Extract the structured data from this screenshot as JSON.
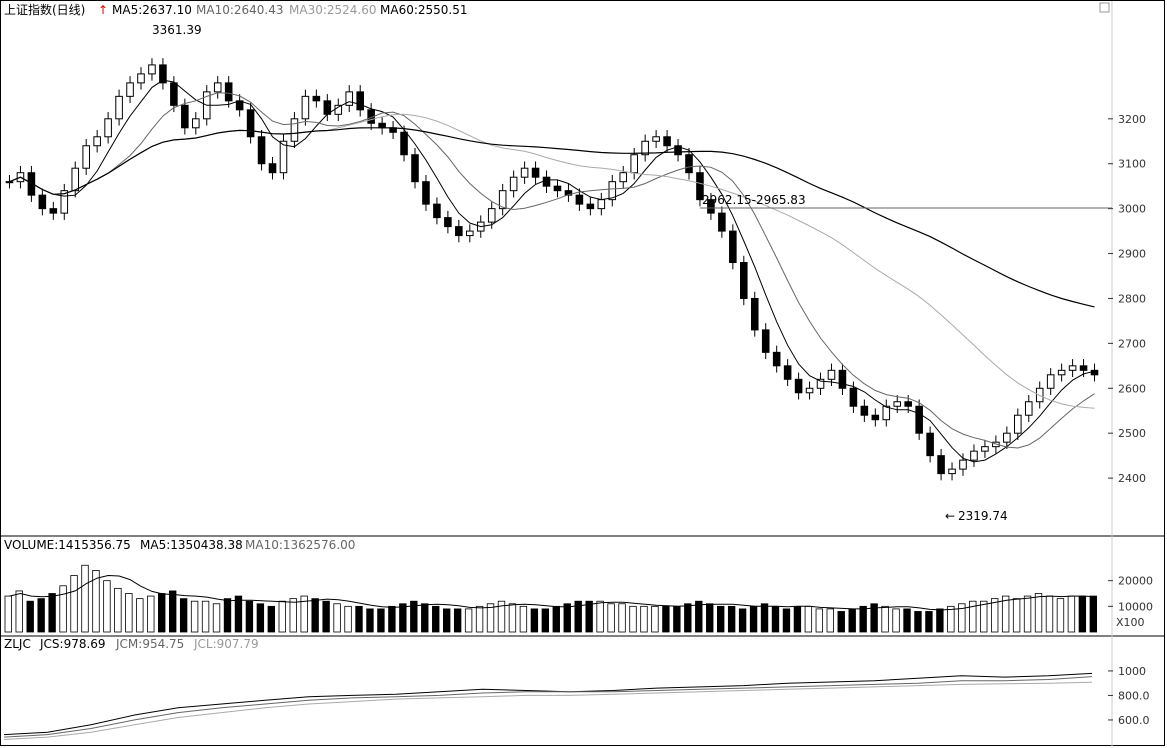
{
  "header": {
    "index_name": "上证指数(日线)",
    "ma5": "MA5:2637.10",
    "ma10": "MA10:2640.43",
    "ma30": "MA30:2524.60",
    "ma60": "MA60:2550.51"
  },
  "annotations": {
    "high_label": "3361.39",
    "low_label": "2319.74",
    "gap_label": "2962.15-2965.83"
  },
  "volume_header": {
    "volume": "VOLUME:1415356.75",
    "ma5": "MA5:1350438.38",
    "ma10": "MA10:1362576.00"
  },
  "zljc_header": {
    "name": "ZLJC",
    "jcs": "JCS:978.69",
    "jcm": "JCM:954.75",
    "jcl": "JCL:907.79"
  },
  "volume_unit": "X100",
  "colors": {
    "background": "#ffffff",
    "candle": "#000000",
    "up_arrow": "#e00000",
    "down_arrow": "#22bb22",
    "ma_light": "#aaaaaa"
  },
  "chart_data": [
    {
      "type": "line",
      "name": "price",
      "ylim": [
        2280,
        3420
      ],
      "yticks": [
        2400,
        2500,
        2600,
        2700,
        2800,
        2900,
        3000,
        3100,
        3200
      ],
      "ytick_labels": [
        "2400",
        "2500",
        "2600",
        "2700",
        "2800",
        "2900",
        "3000",
        "3100",
        "3200"
      ],
      "close": [
        3060,
        3080,
        3030,
        3000,
        2990,
        3040,
        3090,
        3140,
        3160,
        3200,
        3250,
        3280,
        3300,
        3320,
        3280,
        3230,
        3180,
        3200,
        3260,
        3280,
        3240,
        3220,
        3160,
        3100,
        3080,
        3150,
        3200,
        3250,
        3240,
        3210,
        3230,
        3260,
        3220,
        3190,
        3180,
        3170,
        3120,
        3060,
        3010,
        2980,
        2960,
        2940,
        2950,
        2970,
        3000,
        3040,
        3070,
        3090,
        3070,
        3050,
        3040,
        3030,
        3010,
        3000,
        3020,
        3060,
        3080,
        3120,
        3150,
        3160,
        3140,
        3120,
        3080,
        3020,
        2990,
        2950,
        2880,
        2800,
        2730,
        2680,
        2650,
        2620,
        2590,
        2600,
        2620,
        2640,
        2600,
        2560,
        2540,
        2530,
        2560,
        2570,
        2560,
        2500,
        2450,
        2410,
        2420,
        2440,
        2460,
        2470,
        2480,
        2500,
        2540,
        2570,
        2600,
        2630,
        2640,
        2650,
        2640,
        2630
      ]
    },
    {
      "type": "bar",
      "name": "volume",
      "ylim": [
        0,
        30000
      ],
      "yticks": [
        10000,
        20000
      ],
      "ytick_labels": [
        "10000",
        "20000"
      ],
      "values": [
        14000,
        16000,
        12000,
        13000,
        15000,
        18000,
        22000,
        26000,
        24000,
        20000,
        17000,
        15000,
        13000,
        14000,
        15000,
        16000,
        13000,
        12000,
        12000,
        11000,
        13000,
        14000,
        12000,
        11000,
        10000,
        12000,
        13000,
        14000,
        13000,
        12000,
        11000,
        10000,
        10000,
        9000,
        9000,
        10000,
        11000,
        12000,
        11000,
        10000,
        9000,
        9000,
        9000,
        10000,
        11000,
        12000,
        11000,
        10000,
        9000,
        9000,
        10000,
        11000,
        12000,
        12000,
        12000,
        11000,
        11000,
        10000,
        10000,
        10000,
        10000,
        10000,
        11000,
        12000,
        11000,
        10000,
        10000,
        9000,
        10000,
        11000,
        10000,
        9000,
        10000,
        10000,
        9000,
        9000,
        8000,
        9000,
        10000,
        11000,
        10000,
        9000,
        9000,
        8000,
        8000,
        9000,
        10000,
        11000,
        12000,
        12000,
        13000,
        14000,
        13000,
        14000,
        15000,
        14000,
        13000,
        14000,
        14000,
        14000
      ]
    },
    {
      "type": "line",
      "name": "ZLJC",
      "ylim": [
        420,
        1130
      ],
      "yticks": [
        600,
        800,
        1000
      ],
      "ytick_labels": [
        "600.0",
        "800.0",
        "1000"
      ],
      "series": [
        {
          "name": "JCS",
          "values": [
            480,
            500,
            560,
            640,
            700,
            730,
            760,
            790,
            800,
            810,
            830,
            850,
            840,
            830,
            840,
            860,
            870,
            880,
            900,
            910,
            920,
            940,
            960,
            950,
            960,
            980
          ]
        },
        {
          "name": "JCM",
          "values": [
            460,
            480,
            530,
            600,
            660,
            700,
            730,
            760,
            780,
            790,
            800,
            820,
            830,
            830,
            830,
            840,
            850,
            860,
            870,
            880,
            890,
            900,
            920,
            920,
            930,
            954
          ]
        },
        {
          "name": "JCL",
          "values": [
            440,
            460,
            500,
            560,
            620,
            660,
            700,
            730,
            750,
            770,
            780,
            790,
            800,
            800,
            810,
            820,
            830,
            840,
            850,
            860,
            870,
            880,
            890,
            895,
            900,
            907
          ]
        }
      ]
    }
  ]
}
